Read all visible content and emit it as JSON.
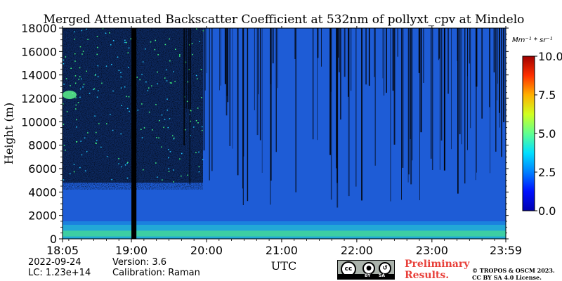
{
  "chart_data": {
    "type": "heatmap",
    "title": "Merged Attenuated Backscatter Coefficient at 532nm of pollyxt_cpv at Mindelo",
    "xlabel": "UTC",
    "ylabel": "Height (m)",
    "x_ticks": [
      "18:05",
      "19:00",
      "20:00",
      "21:00",
      "22:00",
      "23:00",
      "23:59"
    ],
    "x_range": [
      "18:05",
      "23:59"
    ],
    "y_ticks": [
      0,
      2000,
      4000,
      6000,
      8000,
      10000,
      12000,
      14000,
      16000,
      18000
    ],
    "ylim": [
      0,
      18000
    ],
    "colorbar": {
      "unit_label": "Mm⁻¹ * sr⁻¹",
      "range": [
        0.0,
        10.0
      ],
      "ticks": [
        "0.0",
        "2.5",
        "5.0",
        "7.5",
        "10.0"
      ],
      "colormap": "jet"
    },
    "features": [
      {
        "description": "no-signal gap",
        "x_start": "19:00",
        "x_end": "19:04"
      },
      {
        "description": "boundary layer",
        "height_range": [
          0,
          1500
        ]
      },
      {
        "description": "elevated aerosol/cloud",
        "time": "18:05",
        "height": 12300
      }
    ]
  },
  "footer": {
    "date": "2022-09-24",
    "lc": "LC: 1.23e+14",
    "version": "Version: 3.6",
    "calibration": "Calibration: Raman",
    "preliminary_line1": "Preliminary",
    "preliminary_line2": "Results.",
    "copyright_line1": "© TROPOS & OSCM 2023.",
    "copyright_line2": "CC BY SA 4.0 License.",
    "license_badge": {
      "left": "BY",
      "right": "SA"
    }
  },
  "colors": {
    "accent_red": "#e8403a",
    "background_blue": "#1e5cd6"
  }
}
